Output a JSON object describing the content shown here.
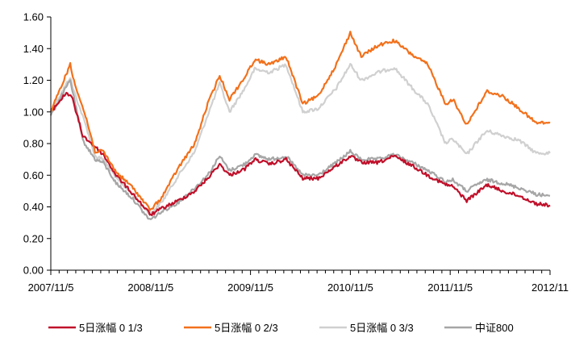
{
  "chart_data": {
    "type": "line",
    "title": "",
    "xlabel": "",
    "ylabel": "",
    "x_ticks": [
      "2007/11/5",
      "2008/11/5",
      "2009/11/5",
      "2010/11/5",
      "2011/11/5",
      "2012/11"
    ],
    "y_ticks": [
      "0.00",
      "0.20",
      "0.40",
      "0.60",
      "0.80",
      "1.00",
      "1.20",
      "1.40",
      "1.60"
    ],
    "ylim": [
      0,
      1.6
    ],
    "xlim": [
      "2007-11-05",
      "2012-11-05"
    ],
    "grid": false,
    "legend_position": "bottom",
    "series": [
      {
        "name": "5日涨幅 0 1/3",
        "color": "#c0102a",
        "points": [
          [
            "2007-11-05",
            1.0
          ],
          [
            "2008-01-01",
            1.12
          ],
          [
            "2008-01-20",
            1.1
          ],
          [
            "2008-03-01",
            0.85
          ],
          [
            "2008-04-15",
            0.78
          ],
          [
            "2008-05-15",
            0.73
          ],
          [
            "2008-07-01",
            0.6
          ],
          [
            "2008-09-01",
            0.48
          ],
          [
            "2008-10-25",
            0.37
          ],
          [
            "2008-11-05",
            0.35
          ],
          [
            "2008-12-15",
            0.39
          ],
          [
            "2009-02-15",
            0.44
          ],
          [
            "2009-04-15",
            0.5
          ],
          [
            "2009-06-01",
            0.58
          ],
          [
            "2009-07-15",
            0.67
          ],
          [
            "2009-08-20",
            0.6
          ],
          [
            "2009-10-15",
            0.64
          ],
          [
            "2009-11-20",
            0.7
          ],
          [
            "2010-01-15",
            0.67
          ],
          [
            "2010-03-15",
            0.7
          ],
          [
            "2010-05-15",
            0.58
          ],
          [
            "2010-07-10",
            0.58
          ],
          [
            "2010-09-15",
            0.66
          ],
          [
            "2010-11-05",
            0.72
          ],
          [
            "2010-12-15",
            0.68
          ],
          [
            "2011-02-15",
            0.68
          ],
          [
            "2011-04-15",
            0.72
          ],
          [
            "2011-06-20",
            0.66
          ],
          [
            "2011-08-15",
            0.6
          ],
          [
            "2011-10-20",
            0.54
          ],
          [
            "2011-11-15",
            0.53
          ],
          [
            "2012-01-05",
            0.44
          ],
          [
            "2012-02-20",
            0.5
          ],
          [
            "2012-03-20",
            0.54
          ],
          [
            "2012-05-15",
            0.5
          ],
          [
            "2012-07-15",
            0.47
          ],
          [
            "2012-09-15",
            0.42
          ],
          [
            "2012-11-05",
            0.41
          ]
        ]
      },
      {
        "name": "5日涨幅 0 2/3",
        "color": "#f2711c",
        "points": [
          [
            "2007-11-05",
            1.0
          ],
          [
            "2008-01-15",
            1.3
          ],
          [
            "2008-01-25",
            1.22
          ],
          [
            "2008-03-15",
            0.95
          ],
          [
            "2008-04-15",
            0.75
          ],
          [
            "2008-05-15",
            0.75
          ],
          [
            "2008-07-01",
            0.62
          ],
          [
            "2008-09-01",
            0.52
          ],
          [
            "2008-10-25",
            0.4
          ],
          [
            "2008-11-05",
            0.38
          ],
          [
            "2008-12-15",
            0.46
          ],
          [
            "2009-02-15",
            0.65
          ],
          [
            "2009-04-15",
            0.8
          ],
          [
            "2009-06-01",
            1.05
          ],
          [
            "2009-07-15",
            1.23
          ],
          [
            "2009-08-20",
            1.08
          ],
          [
            "2009-10-15",
            1.22
          ],
          [
            "2009-11-20",
            1.33
          ],
          [
            "2010-01-15",
            1.3
          ],
          [
            "2010-03-15",
            1.35
          ],
          [
            "2010-05-15",
            1.05
          ],
          [
            "2010-07-10",
            1.1
          ],
          [
            "2010-09-15",
            1.3
          ],
          [
            "2010-11-05",
            1.5
          ],
          [
            "2010-12-15",
            1.35
          ],
          [
            "2011-02-15",
            1.42
          ],
          [
            "2011-04-15",
            1.45
          ],
          [
            "2011-06-20",
            1.36
          ],
          [
            "2011-08-15",
            1.3
          ],
          [
            "2011-10-20",
            1.05
          ],
          [
            "2011-11-15",
            1.08
          ],
          [
            "2012-01-05",
            0.92
          ],
          [
            "2012-02-20",
            1.05
          ],
          [
            "2012-03-20",
            1.13
          ],
          [
            "2012-05-15",
            1.1
          ],
          [
            "2012-07-15",
            1.02
          ],
          [
            "2012-09-15",
            0.93
          ],
          [
            "2012-11-05",
            0.93
          ]
        ]
      },
      {
        "name": "5日涨幅 0 3/3",
        "color": "#d0d0d0",
        "points": [
          [
            "2007-11-05",
            1.0
          ],
          [
            "2008-01-15",
            1.22
          ],
          [
            "2008-01-25",
            1.15
          ],
          [
            "2008-03-15",
            0.9
          ],
          [
            "2008-04-15",
            0.72
          ],
          [
            "2008-05-15",
            0.7
          ],
          [
            "2008-07-01",
            0.58
          ],
          [
            "2008-09-01",
            0.48
          ],
          [
            "2008-10-25",
            0.37
          ],
          [
            "2008-11-05",
            0.36
          ],
          [
            "2008-12-15",
            0.43
          ],
          [
            "2009-02-15",
            0.6
          ],
          [
            "2009-04-15",
            0.75
          ],
          [
            "2009-06-01",
            0.98
          ],
          [
            "2009-07-15",
            1.18
          ],
          [
            "2009-08-20",
            1.0
          ],
          [
            "2009-10-15",
            1.15
          ],
          [
            "2009-11-20",
            1.27
          ],
          [
            "2010-01-15",
            1.25
          ],
          [
            "2010-03-15",
            1.3
          ],
          [
            "2010-05-15",
            1.0
          ],
          [
            "2010-07-10",
            1.02
          ],
          [
            "2010-09-15",
            1.15
          ],
          [
            "2010-11-05",
            1.3
          ],
          [
            "2010-12-15",
            1.2
          ],
          [
            "2011-02-15",
            1.25
          ],
          [
            "2011-04-15",
            1.28
          ],
          [
            "2011-06-20",
            1.15
          ],
          [
            "2011-08-15",
            1.05
          ],
          [
            "2011-10-20",
            0.8
          ],
          [
            "2011-11-15",
            0.83
          ],
          [
            "2012-01-05",
            0.73
          ],
          [
            "2012-02-20",
            0.83
          ],
          [
            "2012-03-20",
            0.88
          ],
          [
            "2012-05-15",
            0.85
          ],
          [
            "2012-07-15",
            0.82
          ],
          [
            "2012-09-15",
            0.74
          ],
          [
            "2012-11-05",
            0.74
          ]
        ]
      },
      {
        "name": "中证800",
        "color": "#a6a6a6",
        "points": [
          [
            "2007-11-05",
            0.98
          ],
          [
            "2008-01-15",
            1.2
          ],
          [
            "2008-01-25",
            1.12
          ],
          [
            "2008-03-01",
            0.82
          ],
          [
            "2008-04-15",
            0.7
          ],
          [
            "2008-05-15",
            0.68
          ],
          [
            "2008-07-01",
            0.55
          ],
          [
            "2008-09-01",
            0.45
          ],
          [
            "2008-10-25",
            0.33
          ],
          [
            "2008-11-05",
            0.32
          ],
          [
            "2008-12-15",
            0.37
          ],
          [
            "2009-02-15",
            0.43
          ],
          [
            "2009-04-15",
            0.52
          ],
          [
            "2009-06-01",
            0.6
          ],
          [
            "2009-07-15",
            0.72
          ],
          [
            "2009-08-20",
            0.63
          ],
          [
            "2009-10-15",
            0.67
          ],
          [
            "2009-11-20",
            0.73
          ],
          [
            "2010-01-15",
            0.7
          ],
          [
            "2010-03-15",
            0.72
          ],
          [
            "2010-05-15",
            0.6
          ],
          [
            "2010-07-10",
            0.6
          ],
          [
            "2010-09-15",
            0.68
          ],
          [
            "2010-11-05",
            0.75
          ],
          [
            "2010-12-15",
            0.7
          ],
          [
            "2011-02-15",
            0.7
          ],
          [
            "2011-04-15",
            0.73
          ],
          [
            "2011-06-20",
            0.68
          ],
          [
            "2011-08-15",
            0.63
          ],
          [
            "2011-10-20",
            0.56
          ],
          [
            "2011-11-15",
            0.57
          ],
          [
            "2012-01-05",
            0.5
          ],
          [
            "2012-02-20",
            0.55
          ],
          [
            "2012-03-20",
            0.57
          ],
          [
            "2012-05-15",
            0.55
          ],
          [
            "2012-07-15",
            0.52
          ],
          [
            "2012-09-15",
            0.48
          ],
          [
            "2012-11-05",
            0.47
          ]
        ]
      }
    ]
  }
}
